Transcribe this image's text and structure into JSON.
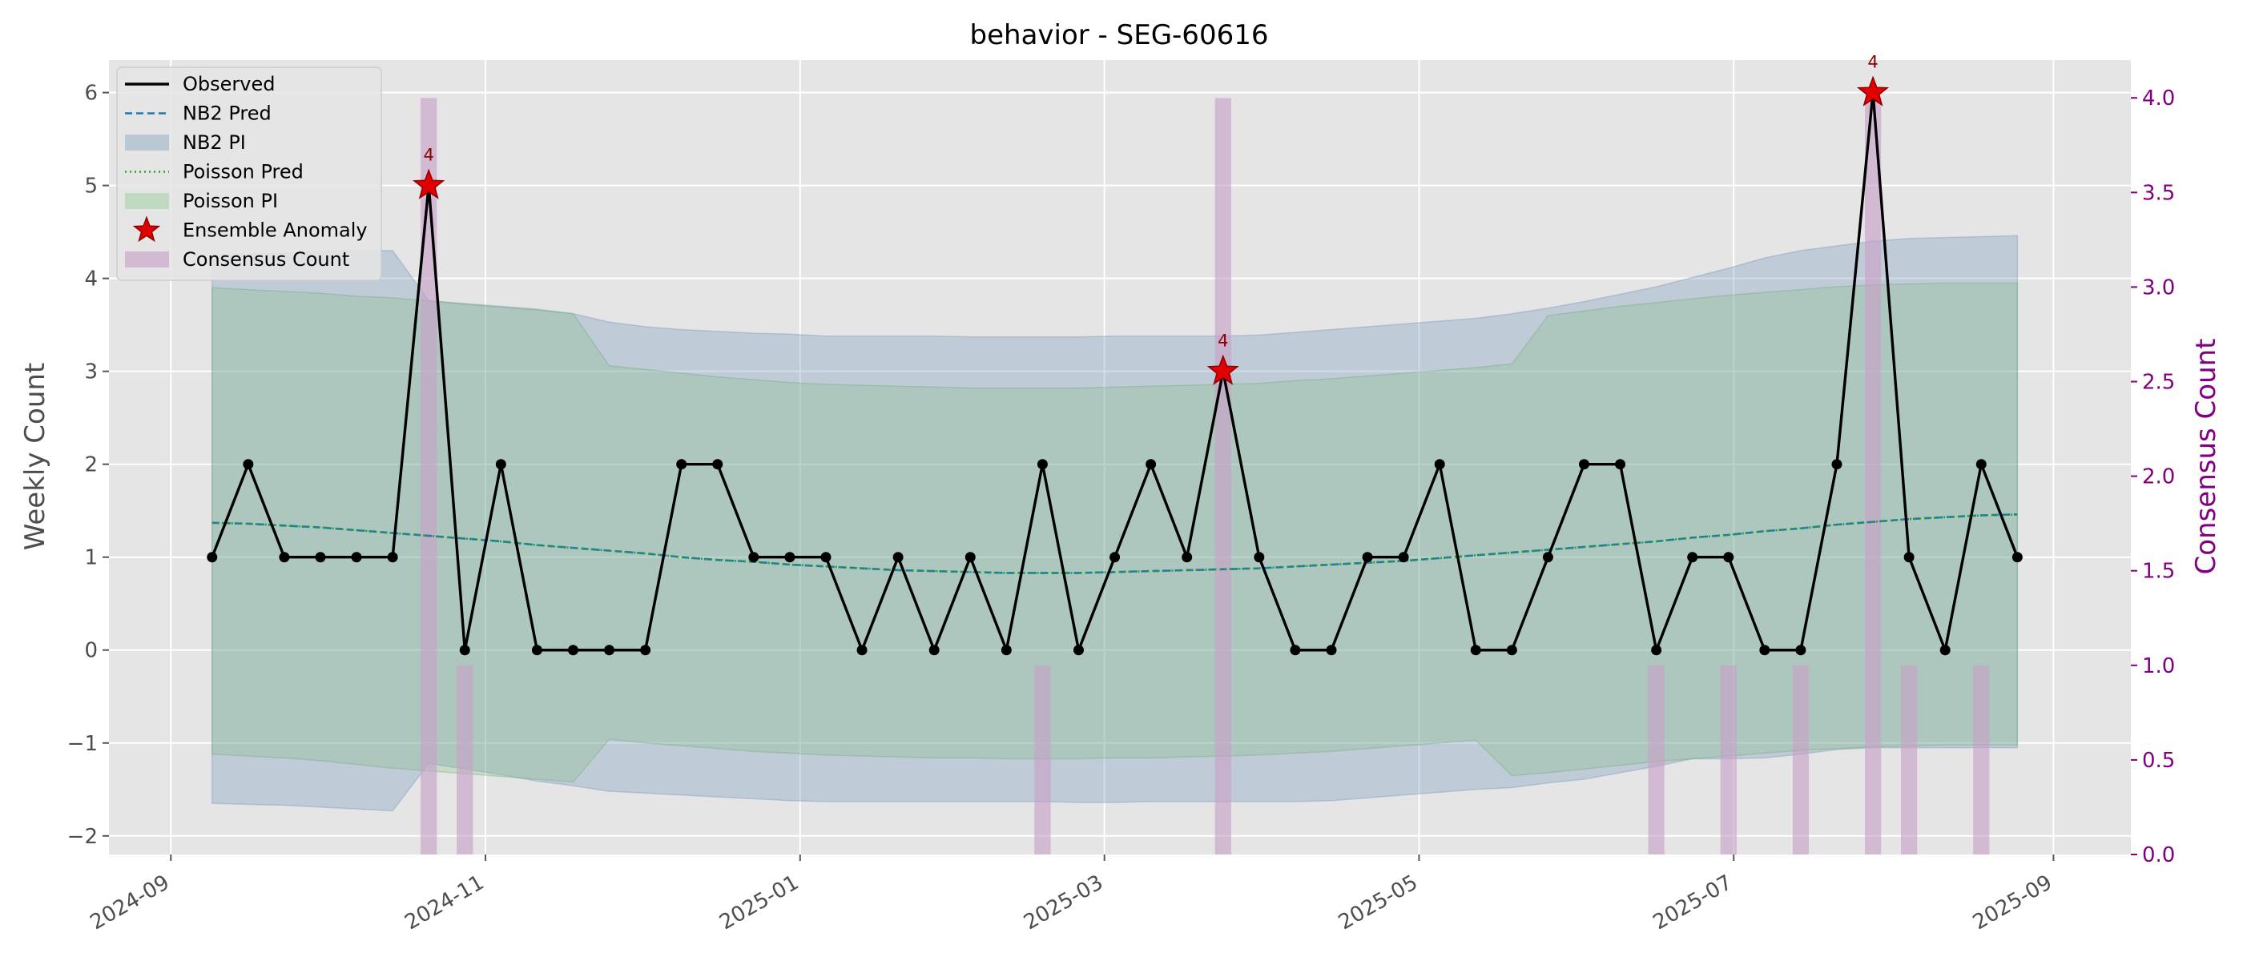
{
  "chart_data": {
    "type": "line",
    "title": "behavior - SEG-60616",
    "ylabel": "Weekly Count",
    "y2label": "Consensus Count",
    "ylim": [
      -2.2,
      6.35
    ],
    "y2lim": [
      0.0,
      4.2
    ],
    "xlim": [
      "2024-08-20",
      "2025-09-16"
    ],
    "grid": true,
    "legend_placement": "top-left",
    "x_ticks": [
      "2024-09-01",
      "2024-11-01",
      "2025-01-01",
      "2025-03-01",
      "2025-05-01",
      "2025-07-01",
      "2025-09-01"
    ],
    "x_tick_labels": [
      "2024-09",
      "2024-11",
      "2025-01",
      "2025-03",
      "2025-05",
      "2025-07",
      "2025-09"
    ],
    "y_ticks": [
      -2,
      -1,
      0,
      1,
      2,
      3,
      4,
      5,
      6
    ],
    "y_tick_labels": [
      "−2",
      "−1",
      "0",
      "1",
      "2",
      "3",
      "4",
      "5",
      "6"
    ],
    "y2_ticks": [
      0.0,
      0.5,
      1.0,
      1.5,
      2.0,
      2.5,
      3.0,
      3.5,
      4.0
    ],
    "y2_tick_labels": [
      "0.0",
      "0.5",
      "1.0",
      "1.5",
      "2.0",
      "2.5",
      "3.0",
      "3.5",
      "4.0"
    ],
    "x": [
      "2024-09-09",
      "2024-09-16",
      "2024-09-23",
      "2024-09-30",
      "2024-10-07",
      "2024-10-14",
      "2024-10-21",
      "2024-10-28",
      "2024-11-04",
      "2024-11-11",
      "2024-11-18",
      "2024-11-25",
      "2024-12-02",
      "2024-12-09",
      "2024-12-16",
      "2024-12-23",
      "2024-12-30",
      "2025-01-06",
      "2025-01-13",
      "2025-01-20",
      "2025-01-27",
      "2025-02-03",
      "2025-02-10",
      "2025-02-17",
      "2025-02-24",
      "2025-03-03",
      "2025-03-10",
      "2025-03-17",
      "2025-03-24",
      "2025-03-31",
      "2025-04-07",
      "2025-04-14",
      "2025-04-21",
      "2025-04-28",
      "2025-05-05",
      "2025-05-12",
      "2025-05-19",
      "2025-05-26",
      "2025-06-02",
      "2025-06-09",
      "2025-06-16",
      "2025-06-23",
      "2025-06-30",
      "2025-07-07",
      "2025-07-14",
      "2025-07-21",
      "2025-07-28",
      "2025-08-04",
      "2025-08-11",
      "2025-08-18",
      "2025-08-25"
    ],
    "series": [
      {
        "name": "Observed",
        "color": "#000000",
        "style": "solid-with-markers",
        "values": [
          1,
          2,
          1,
          1,
          1,
          1,
          5,
          0,
          2,
          0,
          0,
          0,
          0,
          2,
          2,
          1,
          1,
          1,
          0,
          1,
          0,
          1,
          0,
          2,
          0,
          1,
          2,
          1,
          3,
          1,
          0,
          0,
          1,
          1,
          2,
          0,
          0,
          1,
          2,
          2,
          0,
          1,
          1,
          0,
          0,
          2,
          6,
          1,
          0,
          2,
          1
        ]
      },
      {
        "name": "NB2 Pred",
        "color": "#1f77b4",
        "style": "dashed",
        "values": [
          1.37,
          1.36,
          1.34,
          1.32,
          1.29,
          1.26,
          1.23,
          1.2,
          1.17,
          1.13,
          1.1,
          1.07,
          1.04,
          1.0,
          0.97,
          0.95,
          0.92,
          0.9,
          0.88,
          0.86,
          0.85,
          0.84,
          0.83,
          0.83,
          0.83,
          0.84,
          0.85,
          0.86,
          0.87,
          0.88,
          0.9,
          0.92,
          0.94,
          0.96,
          0.99,
          1.02,
          1.05,
          1.08,
          1.11,
          1.14,
          1.17,
          1.21,
          1.24,
          1.28,
          1.31,
          1.35,
          1.38,
          1.41,
          1.43,
          1.45,
          1.46
        ]
      },
      {
        "name": "NB2 PI",
        "color": "#6b8fb8",
        "style": "band",
        "lower": [
          -1.65,
          -1.66,
          -1.67,
          -1.69,
          -1.71,
          -1.73,
          -1.22,
          -1.28,
          -1.34,
          -1.41,
          -1.46,
          -1.52,
          -1.54,
          -1.56,
          -1.58,
          -1.6,
          -1.62,
          -1.63,
          -1.63,
          -1.63,
          -1.63,
          -1.63,
          -1.63,
          -1.63,
          -1.64,
          -1.64,
          -1.63,
          -1.63,
          -1.63,
          -1.63,
          -1.63,
          -1.62,
          -1.59,
          -1.56,
          -1.53,
          -1.5,
          -1.48,
          -1.43,
          -1.39,
          -1.32,
          -1.25,
          -1.17,
          -1.17,
          -1.16,
          -1.12,
          -1.07,
          -1.05,
          -1.05,
          -1.05,
          -1.05,
          -1.05
        ],
        "upper": [
          4.25,
          4.26,
          4.27,
          4.29,
          4.3,
          4.3,
          3.76,
          3.73,
          3.7,
          3.67,
          3.62,
          3.53,
          3.48,
          3.45,
          3.43,
          3.41,
          3.4,
          3.38,
          3.38,
          3.38,
          3.38,
          3.37,
          3.37,
          3.37,
          3.37,
          3.38,
          3.38,
          3.38,
          3.38,
          3.39,
          3.42,
          3.45,
          3.48,
          3.51,
          3.54,
          3.57,
          3.62,
          3.68,
          3.75,
          3.83,
          3.91,
          4.01,
          4.11,
          4.22,
          4.3,
          4.35,
          4.4,
          4.43,
          4.44,
          4.45,
          4.46
        ]
      },
      {
        "name": "Poisson Pred",
        "color": "#2ca02c",
        "style": "dotted",
        "values": [
          1.37,
          1.36,
          1.34,
          1.32,
          1.29,
          1.26,
          1.23,
          1.2,
          1.17,
          1.13,
          1.1,
          1.07,
          1.04,
          1.0,
          0.97,
          0.95,
          0.92,
          0.9,
          0.88,
          0.86,
          0.85,
          0.84,
          0.83,
          0.83,
          0.83,
          0.84,
          0.85,
          0.86,
          0.87,
          0.88,
          0.9,
          0.92,
          0.94,
          0.96,
          0.99,
          1.02,
          1.05,
          1.08,
          1.11,
          1.14,
          1.17,
          1.21,
          1.24,
          1.28,
          1.31,
          1.35,
          1.38,
          1.41,
          1.43,
          1.45,
          1.46
        ]
      },
      {
        "name": "Poisson PI",
        "color": "#7fbf7f",
        "style": "band",
        "lower": [
          -1.12,
          -1.14,
          -1.16,
          -1.19,
          -1.23,
          -1.27,
          -1.3,
          -1.33,
          -1.36,
          -1.39,
          -1.42,
          -0.96,
          -1.0,
          -1.03,
          -1.06,
          -1.09,
          -1.11,
          -1.13,
          -1.14,
          -1.15,
          -1.16,
          -1.16,
          -1.17,
          -1.17,
          -1.17,
          -1.16,
          -1.16,
          -1.15,
          -1.14,
          -1.13,
          -1.11,
          -1.09,
          -1.06,
          -1.03,
          -1.0,
          -0.97,
          -1.35,
          -1.32,
          -1.28,
          -1.24,
          -1.2,
          -1.17,
          -1.14,
          -1.11,
          -1.08,
          -1.06,
          -1.04,
          -1.03,
          -1.02,
          -1.02,
          -1.02
        ],
        "upper": [
          3.9,
          3.88,
          3.86,
          3.84,
          3.81,
          3.79,
          3.76,
          3.72,
          3.69,
          3.66,
          3.62,
          3.06,
          3.02,
          2.98,
          2.94,
          2.91,
          2.88,
          2.86,
          2.85,
          2.84,
          2.83,
          2.82,
          2.82,
          2.82,
          2.82,
          2.83,
          2.84,
          2.85,
          2.86,
          2.87,
          2.9,
          2.92,
          2.95,
          2.98,
          3.01,
          3.04,
          3.08,
          3.6,
          3.65,
          3.7,
          3.74,
          3.78,
          3.82,
          3.85,
          3.88,
          3.91,
          3.93,
          3.94,
          3.95,
          3.95,
          3.95
        ]
      },
      {
        "name": "Ensemble Anomaly",
        "color": "#e00000",
        "style": "star-markers",
        "points": [
          {
            "x": "2024-10-21",
            "y": 5,
            "label": "4"
          },
          {
            "x": "2025-03-24",
            "y": 3,
            "label": "4"
          },
          {
            "x": "2025-07-28",
            "y": 6,
            "label": "4"
          }
        ]
      },
      {
        "name": "Consensus Count",
        "color": "#c8a0c8",
        "style": "bars-secondary-axis",
        "points": [
          {
            "x": "2024-10-21",
            "y": 4
          },
          {
            "x": "2024-10-28",
            "y": 1
          },
          {
            "x": "2025-02-17",
            "y": 1
          },
          {
            "x": "2025-03-24",
            "y": 4
          },
          {
            "x": "2025-06-16",
            "y": 1
          },
          {
            "x": "2025-06-30",
            "y": 1
          },
          {
            "x": "2025-07-14",
            "y": 1
          },
          {
            "x": "2025-07-28",
            "y": 4
          },
          {
            "x": "2025-08-04",
            "y": 1
          },
          {
            "x": "2025-08-18",
            "y": 1
          }
        ]
      }
    ]
  }
}
